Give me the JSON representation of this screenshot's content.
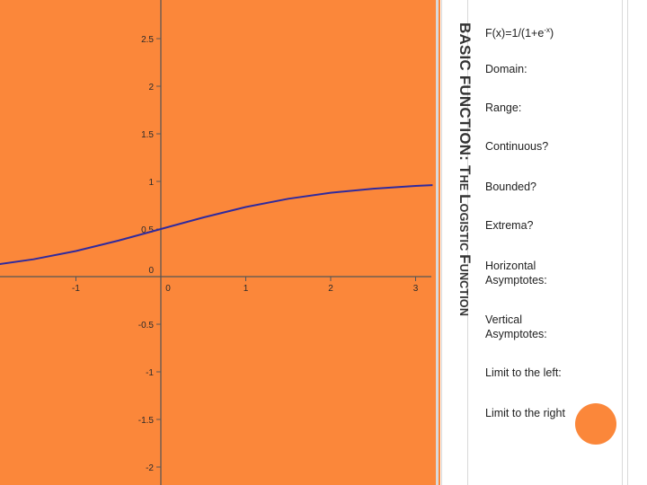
{
  "slide_title": {
    "main": "BASIC FUNCTION: ",
    "the_cap": "T",
    "the_rest": "HE ",
    "log_cap": "L",
    "log_rest": "OGISTIC ",
    "fun_cap": "F",
    "fun_rest": "UNCTION"
  },
  "formula": {
    "prefix": "F(x)=1/(1+e",
    "exponent": "-x",
    "suffix": ")"
  },
  "bullets": [
    "Domain:",
    "Range:",
    "Continuous?",
    "Bounded?",
    "Extrema?",
    "Horizontal Asymptotes:",
    "Vertical Asymptotes:",
    "Limit to the left:",
    "Limit to the right"
  ],
  "colors": {
    "panel": "#fb873a",
    "curve": "#2f2a9e",
    "axis": "#555555"
  },
  "chart_data": {
    "type": "line",
    "function": "1/(1+e^-x)",
    "x_ticks": [
      "-1",
      "0",
      "1",
      "2",
      "3"
    ],
    "y_ticks": [
      "2.5",
      "2",
      "1.5",
      "1",
      "0.5",
      "0",
      "-0.5",
      "-1",
      "-1.5",
      "-2"
    ],
    "xlim": [
      -2,
      3.2
    ],
    "ylim": [
      -2.1,
      2.85
    ],
    "grid": false,
    "series": [
      {
        "x": [
          -2,
          -1.5,
          -1,
          -0.5,
          0,
          0.5,
          1,
          1.5,
          2,
          2.5,
          3,
          3.2
        ],
        "y": [
          0.119,
          0.182,
          0.269,
          0.378,
          0.5,
          0.622,
          0.731,
          0.818,
          0.881,
          0.924,
          0.953,
          0.961
        ]
      }
    ]
  }
}
